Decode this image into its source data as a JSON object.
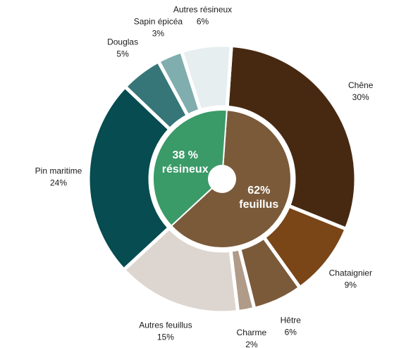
{
  "chart_data": {
    "type": "pie",
    "variant": "nested-donut",
    "title": "",
    "outer_ring": [
      {
        "label": "Chêne",
        "value": 30,
        "value_label": "30%",
        "color": "#472912"
      },
      {
        "label": "Chataignier",
        "value": 9,
        "value_label": "9%",
        "color": "#7A4517"
      },
      {
        "label": "Hêtre",
        "value": 6,
        "value_label": "6%",
        "color": "#7B5A3A"
      },
      {
        "label": "Charme",
        "value": 2,
        "value_label": "2%",
        "color": "#B09A88"
      },
      {
        "label": "Autres feuillus",
        "value": 15,
        "value_label": "15%",
        "color": "#DDD5CF"
      },
      {
        "label": "Pin maritime",
        "value": 24,
        "value_label": "24%",
        "color": "#064C50"
      },
      {
        "label": "Douglas",
        "value": 5,
        "value_label": "5%",
        "color": "#367678"
      },
      {
        "label": "Sapin épicéa",
        "value": 3,
        "value_label": "3%",
        "color": "#80ADAE"
      },
      {
        "label": "Autres résineux",
        "value": 6,
        "value_label": "6%",
        "color": "#E6EEEF"
      }
    ],
    "inner_ring": [
      {
        "line1": "62%",
        "line2": "feuillus",
        "value": 62,
        "color": "#7B5A3A"
      },
      {
        "line1": "38 %",
        "line2": "résineux",
        "value": 38,
        "color": "#3A9A68"
      }
    ]
  }
}
